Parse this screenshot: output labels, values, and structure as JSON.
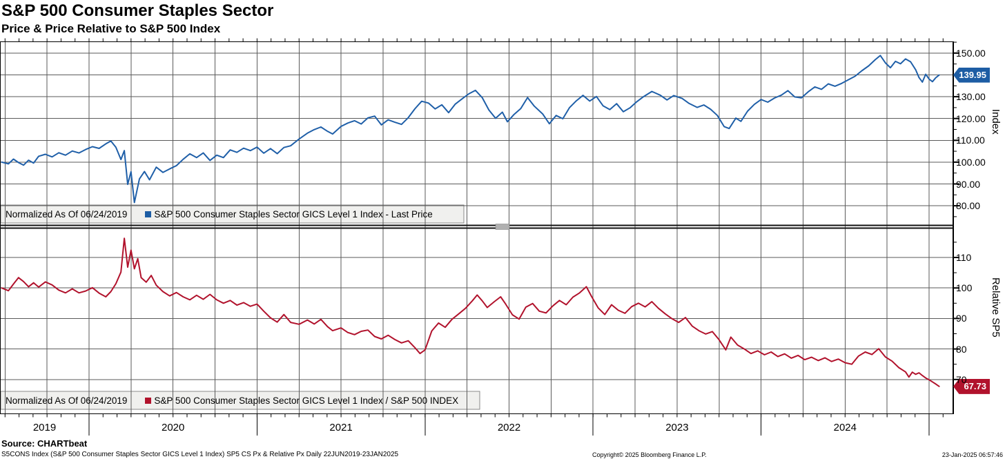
{
  "header": {
    "title": "S&P 500 Consumer Staples Sector",
    "subtitle": "Price & Price Relative to S&P 500 Index"
  },
  "chart_data": [
    {
      "type": "line",
      "panel": "top",
      "series_name": "S&P 500 Consumer Staples Sector GICS Level 1 Index - Last Price",
      "normalized_label": "Normalized As Of 06/24/2019",
      "color": "#1f5fa8",
      "axis_title": "Index",
      "last_value": 139.95,
      "last_value_label": "139.95",
      "ylim": [
        74.3,
        155.3
      ],
      "xlim_years": [
        2019.47,
        2025.08
      ],
      "grid": true,
      "legend_position": "bottom-left",
      "labeled_ticks": [
        [
          150,
          "150.00"
        ],
        [
          130,
          "130.00"
        ],
        [
          120,
          "120.00"
        ],
        [
          110,
          "110.00"
        ],
        [
          100,
          "100.00"
        ],
        [
          90,
          "90.00"
        ],
        [
          80,
          "80.00"
        ]
      ],
      "major_ticks": [
        150,
        140,
        130,
        120,
        110,
        100,
        90,
        80
      ],
      "minor_ticks": [
        155,
        145,
        135,
        125,
        115,
        105,
        95,
        85,
        75
      ],
      "points": [
        [
          2019.48,
          100.0
        ],
        [
          2019.52,
          99.2
        ],
        [
          2019.55,
          101.4
        ],
        [
          2019.58,
          99.8
        ],
        [
          2019.61,
          98.6
        ],
        [
          2019.64,
          100.9
        ],
        [
          2019.67,
          99.6
        ],
        [
          2019.7,
          102.7
        ],
        [
          2019.74,
          103.6
        ],
        [
          2019.78,
          102.4
        ],
        [
          2019.82,
          104.3
        ],
        [
          2019.86,
          103.2
        ],
        [
          2019.9,
          105.1
        ],
        [
          2019.94,
          104.2
        ],
        [
          2019.98,
          105.8
        ],
        [
          2020.02,
          107.1
        ],
        [
          2020.06,
          106.3
        ],
        [
          2020.1,
          108.4
        ],
        [
          2020.13,
          109.7
        ],
        [
          2020.16,
          106.8
        ],
        [
          2020.19,
          101.2
        ],
        [
          2020.21,
          105.3
        ],
        [
          2020.23,
          89.8
        ],
        [
          2020.25,
          95.6
        ],
        [
          2020.27,
          81.5
        ],
        [
          2020.3,
          92.3
        ],
        [
          2020.33,
          95.7
        ],
        [
          2020.36,
          91.9
        ],
        [
          2020.4,
          97.7
        ],
        [
          2020.44,
          95.3
        ],
        [
          2020.48,
          96.9
        ],
        [
          2020.52,
          98.4
        ],
        [
          2020.56,
          101.3
        ],
        [
          2020.6,
          103.8
        ],
        [
          2020.64,
          102.1
        ],
        [
          2020.68,
          104.2
        ],
        [
          2020.72,
          100.8
        ],
        [
          2020.76,
          103.2
        ],
        [
          2020.8,
          102.1
        ],
        [
          2020.84,
          105.6
        ],
        [
          2020.88,
          104.5
        ],
        [
          2020.92,
          106.4
        ],
        [
          2020.96,
          105.3
        ],
        [
          2021.0,
          106.9
        ],
        [
          2021.04,
          104.1
        ],
        [
          2021.08,
          106.2
        ],
        [
          2021.12,
          103.9
        ],
        [
          2021.16,
          106.7
        ],
        [
          2021.2,
          107.5
        ],
        [
          2021.25,
          110.6
        ],
        [
          2021.3,
          113.3
        ],
        [
          2021.34,
          114.9
        ],
        [
          2021.38,
          116.1
        ],
        [
          2021.42,
          114.1
        ],
        [
          2021.45,
          112.9
        ],
        [
          2021.5,
          116.4
        ],
        [
          2021.54,
          117.9
        ],
        [
          2021.58,
          119.0
        ],
        [
          2021.62,
          117.5
        ],
        [
          2021.66,
          120.3
        ],
        [
          2021.7,
          121.1
        ],
        [
          2021.74,
          117.1
        ],
        [
          2021.78,
          119.4
        ],
        [
          2021.82,
          118.3
        ],
        [
          2021.86,
          117.3
        ],
        [
          2021.9,
          120.4
        ],
        [
          2021.94,
          124.5
        ],
        [
          2021.98,
          127.9
        ],
        [
          2022.02,
          127.1
        ],
        [
          2022.06,
          124.4
        ],
        [
          2022.1,
          126.3
        ],
        [
          2022.14,
          122.7
        ],
        [
          2022.18,
          126.6
        ],
        [
          2022.22,
          129.0
        ],
        [
          2022.26,
          131.3
        ],
        [
          2022.3,
          132.9
        ],
        [
          2022.34,
          129.6
        ],
        [
          2022.38,
          123.9
        ],
        [
          2022.42,
          120.1
        ],
        [
          2022.46,
          122.9
        ],
        [
          2022.49,
          118.5
        ],
        [
          2022.53,
          121.9
        ],
        [
          2022.57,
          124.6
        ],
        [
          2022.61,
          129.6
        ],
        [
          2022.65,
          125.7
        ],
        [
          2022.7,
          122.1
        ],
        [
          2022.74,
          117.6
        ],
        [
          2022.78,
          121.4
        ],
        [
          2022.82,
          119.9
        ],
        [
          2022.86,
          125.0
        ],
        [
          2022.9,
          128.1
        ],
        [
          2022.94,
          130.6
        ],
        [
          2022.98,
          128.0
        ],
        [
          2023.02,
          130.1
        ],
        [
          2023.06,
          125.8
        ],
        [
          2023.1,
          124.1
        ],
        [
          2023.14,
          126.8
        ],
        [
          2023.18,
          123.1
        ],
        [
          2023.22,
          124.9
        ],
        [
          2023.26,
          127.7
        ],
        [
          2023.3,
          130.0
        ],
        [
          2023.35,
          132.4
        ],
        [
          2023.4,
          130.7
        ],
        [
          2023.44,
          128.5
        ],
        [
          2023.48,
          130.5
        ],
        [
          2023.53,
          129.2
        ],
        [
          2023.57,
          127.0
        ],
        [
          2023.62,
          125.1
        ],
        [
          2023.66,
          126.2
        ],
        [
          2023.7,
          124.2
        ],
        [
          2023.74,
          121.4
        ],
        [
          2023.78,
          116.3
        ],
        [
          2023.81,
          115.4
        ],
        [
          2023.85,
          120.2
        ],
        [
          2023.88,
          118.7
        ],
        [
          2023.92,
          123.4
        ],
        [
          2023.96,
          126.5
        ],
        [
          2024.0,
          128.7
        ],
        [
          2024.04,
          127.5
        ],
        [
          2024.08,
          129.4
        ],
        [
          2024.12,
          130.7
        ],
        [
          2024.16,
          132.8
        ],
        [
          2024.2,
          129.9
        ],
        [
          2024.24,
          129.5
        ],
        [
          2024.28,
          132.2
        ],
        [
          2024.32,
          134.5
        ],
        [
          2024.36,
          133.4
        ],
        [
          2024.4,
          135.9
        ],
        [
          2024.44,
          134.8
        ],
        [
          2024.48,
          136.1
        ],
        [
          2024.52,
          137.8
        ],
        [
          2024.56,
          139.4
        ],
        [
          2024.6,
          141.9
        ],
        [
          2024.64,
          144.1
        ],
        [
          2024.68,
          147.0
        ],
        [
          2024.71,
          148.9
        ],
        [
          2024.74,
          145.5
        ],
        [
          2024.77,
          143.3
        ],
        [
          2024.8,
          146.2
        ],
        [
          2024.83,
          145.1
        ],
        [
          2024.86,
          147.3
        ],
        [
          2024.89,
          146.0
        ],
        [
          2024.92,
          142.4
        ],
        [
          2024.94,
          138.8
        ],
        [
          2024.96,
          136.7
        ],
        [
          2024.98,
          140.3
        ],
        [
          2025.0,
          138.1
        ],
        [
          2025.02,
          136.9
        ],
        [
          2025.04,
          138.7
        ],
        [
          2025.06,
          139.95
        ]
      ]
    },
    {
      "type": "line",
      "panel": "bottom",
      "series_name": "S&P 500 Consumer Staples Sector GICS Level 1 Index / S&P 500 INDEX",
      "normalized_label": "Normalized As Of 06/24/2019",
      "color": "#b1122c",
      "axis_title": "Relative SP5",
      "last_value": 67.73,
      "last_value_label": "67.73",
      "ylim": [
        58.9,
        119.7
      ],
      "xlim_years": [
        2019.47,
        2025.08
      ],
      "grid": true,
      "legend_position": "bottom-left",
      "labeled_ticks": [
        [
          110,
          "110"
        ],
        [
          100,
          "100"
        ],
        [
          90,
          "90"
        ],
        [
          80,
          "80"
        ],
        [
          70,
          "70"
        ]
      ],
      "major_ticks": [
        110,
        100,
        90,
        80,
        70
      ],
      "minor_ticks": [
        115,
        105,
        95,
        85,
        75
      ],
      "points": [
        [
          2019.48,
          100.0
        ],
        [
          2019.52,
          99.1
        ],
        [
          2019.55,
          101.3
        ],
        [
          2019.58,
          103.4
        ],
        [
          2019.61,
          102.1
        ],
        [
          2019.64,
          100.4
        ],
        [
          2019.67,
          101.7
        ],
        [
          2019.7,
          100.3
        ],
        [
          2019.74,
          102.0
        ],
        [
          2019.78,
          101.0
        ],
        [
          2019.82,
          99.3
        ],
        [
          2019.86,
          98.4
        ],
        [
          2019.9,
          99.7
        ],
        [
          2019.94,
          98.4
        ],
        [
          2019.98,
          99.0
        ],
        [
          2020.02,
          100.1
        ],
        [
          2020.06,
          98.3
        ],
        [
          2020.1,
          97.1
        ],
        [
          2020.13,
          98.8
        ],
        [
          2020.16,
          101.4
        ],
        [
          2020.19,
          105.2
        ],
        [
          2020.21,
          116.3
        ],
        [
          2020.23,
          106.8
        ],
        [
          2020.25,
          112.4
        ],
        [
          2020.27,
          106.3
        ],
        [
          2020.29,
          109.6
        ],
        [
          2020.31,
          103.4
        ],
        [
          2020.34,
          101.9
        ],
        [
          2020.37,
          104.1
        ],
        [
          2020.4,
          100.9
        ],
        [
          2020.44,
          98.8
        ],
        [
          2020.48,
          97.4
        ],
        [
          2020.52,
          98.5
        ],
        [
          2020.56,
          97.1
        ],
        [
          2020.6,
          96.1
        ],
        [
          2020.64,
          97.6
        ],
        [
          2020.68,
          96.3
        ],
        [
          2020.72,
          97.9
        ],
        [
          2020.76,
          96.1
        ],
        [
          2020.8,
          95.0
        ],
        [
          2020.84,
          95.9
        ],
        [
          2020.88,
          94.4
        ],
        [
          2020.92,
          95.2
        ],
        [
          2020.96,
          94.0
        ],
        [
          2021.0,
          94.7
        ],
        [
          2021.04,
          92.4
        ],
        [
          2021.08,
          90.2
        ],
        [
          2021.12,
          88.8
        ],
        [
          2021.16,
          91.3
        ],
        [
          2021.2,
          88.7
        ],
        [
          2021.25,
          88.1
        ],
        [
          2021.3,
          89.5
        ],
        [
          2021.34,
          88.2
        ],
        [
          2021.38,
          89.7
        ],
        [
          2021.42,
          87.3
        ],
        [
          2021.45,
          86.0
        ],
        [
          2021.5,
          86.9
        ],
        [
          2021.54,
          85.4
        ],
        [
          2021.58,
          84.7
        ],
        [
          2021.62,
          85.8
        ],
        [
          2021.66,
          86.2
        ],
        [
          2021.7,
          84.1
        ],
        [
          2021.74,
          83.3
        ],
        [
          2021.78,
          84.5
        ],
        [
          2021.82,
          83.1
        ],
        [
          2021.86,
          82.0
        ],
        [
          2021.9,
          82.7
        ],
        [
          2021.94,
          80.4
        ],
        [
          2021.97,
          78.5
        ],
        [
          2022.0,
          79.7
        ],
        [
          2022.04,
          85.9
        ],
        [
          2022.08,
          88.5
        ],
        [
          2022.12,
          87.1
        ],
        [
          2022.16,
          89.7
        ],
        [
          2022.2,
          91.5
        ],
        [
          2022.24,
          93.3
        ],
        [
          2022.28,
          95.7
        ],
        [
          2022.31,
          97.7
        ],
        [
          2022.34,
          95.8
        ],
        [
          2022.37,
          93.6
        ],
        [
          2022.41,
          95.4
        ],
        [
          2022.45,
          97.1
        ],
        [
          2022.48,
          94.7
        ],
        [
          2022.52,
          91.2
        ],
        [
          2022.56,
          89.8
        ],
        [
          2022.6,
          93.7
        ],
        [
          2022.64,
          94.9
        ],
        [
          2022.68,
          92.4
        ],
        [
          2022.72,
          91.8
        ],
        [
          2022.76,
          94.1
        ],
        [
          2022.8,
          95.9
        ],
        [
          2022.84,
          94.5
        ],
        [
          2022.88,
          97.0
        ],
        [
          2022.92,
          98.4
        ],
        [
          2022.96,
          100.4
        ],
        [
          2022.99,
          97.3
        ],
        [
          2023.03,
          93.5
        ],
        [
          2023.07,
          91.3
        ],
        [
          2023.11,
          94.5
        ],
        [
          2023.15,
          92.7
        ],
        [
          2023.19,
          91.7
        ],
        [
          2023.23,
          93.9
        ],
        [
          2023.27,
          95.0
        ],
        [
          2023.31,
          93.8
        ],
        [
          2023.35,
          95.5
        ],
        [
          2023.39,
          93.3
        ],
        [
          2023.43,
          91.5
        ],
        [
          2023.47,
          89.9
        ],
        [
          2023.51,
          88.7
        ],
        [
          2023.55,
          90.3
        ],
        [
          2023.59,
          87.5
        ],
        [
          2023.63,
          86.0
        ],
        [
          2023.67,
          84.9
        ],
        [
          2023.71,
          85.7
        ],
        [
          2023.75,
          83.0
        ],
        [
          2023.79,
          79.7
        ],
        [
          2023.82,
          83.9
        ],
        [
          2023.86,
          81.3
        ],
        [
          2023.9,
          80.0
        ],
        [
          2023.94,
          78.5
        ],
        [
          2023.98,
          79.4
        ],
        [
          2024.02,
          78.1
        ],
        [
          2024.06,
          79.0
        ],
        [
          2024.1,
          77.5
        ],
        [
          2024.14,
          78.4
        ],
        [
          2024.18,
          77.0
        ],
        [
          2024.22,
          77.9
        ],
        [
          2024.26,
          76.5
        ],
        [
          2024.3,
          77.3
        ],
        [
          2024.34,
          76.2
        ],
        [
          2024.38,
          77.1
        ],
        [
          2024.42,
          75.9
        ],
        [
          2024.46,
          76.7
        ],
        [
          2024.5,
          75.5
        ],
        [
          2024.54,
          75.0
        ],
        [
          2024.58,
          77.7
        ],
        [
          2024.62,
          79.0
        ],
        [
          2024.66,
          78.2
        ],
        [
          2024.7,
          80.1
        ],
        [
          2024.74,
          77.4
        ],
        [
          2024.78,
          76.0
        ],
        [
          2024.82,
          73.9
        ],
        [
          2024.86,
          72.5
        ],
        [
          2024.88,
          70.8
        ],
        [
          2024.9,
          72.4
        ],
        [
          2024.92,
          71.7
        ],
        [
          2024.94,
          72.2
        ],
        [
          2024.96,
          71.3
        ],
        [
          2024.98,
          70.5
        ],
        [
          2025.0,
          69.9
        ],
        [
          2025.02,
          69.2
        ],
        [
          2025.04,
          68.5
        ],
        [
          2025.06,
          67.73
        ]
      ]
    }
  ],
  "x_axis": {
    "year_labels": [
      "2019",
      "2020",
      "2021",
      "2022",
      "2023",
      "2024"
    ]
  },
  "footer": {
    "source": "Source: CHARTbeat",
    "description": "S5CONS Index (S&P 500 Consumer Staples Sector GICS Level 1 Index) SP5 CS Px & Relative Px  Daily 22JUN2019-23JAN2025",
    "copyright": "Copyright© 2025 Bloomberg Finance L.P.",
    "timestamp": "23-Jan-2025 06:57:46"
  }
}
